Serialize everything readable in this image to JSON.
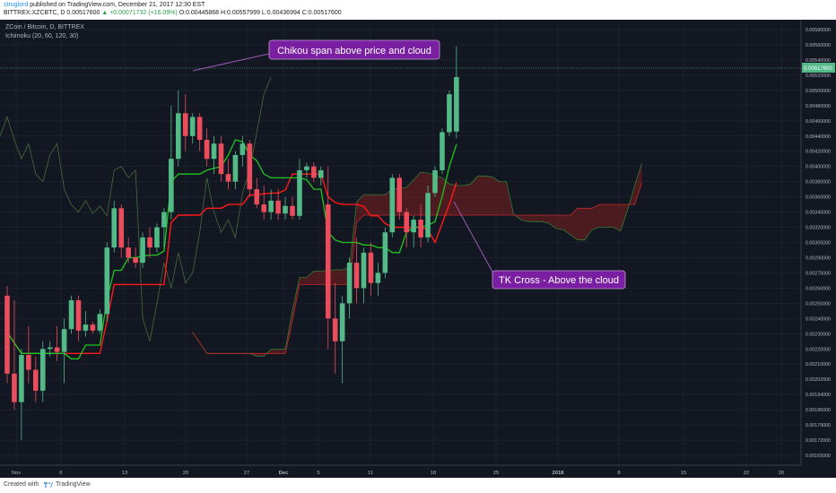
{
  "header": {
    "author": "struglord",
    "published": "published on TradingView.com, December 21, 2017 12:30 EST",
    "symbol": "BITTREX:XZCBTC, D",
    "last": "0.00517600",
    "change": "▲ +0.00071732 (+16.09%)",
    "ohlc": "O:0.00445868 H:0.00557999 L:0.00436994 C:0.00517600"
  },
  "chart_title": "ZCoin / Bitcoin, D, BITTREX",
  "indicator_label": "Ichimoku (20, 60, 120, 30)",
  "footer": {
    "created": "Created with",
    "brand": "TradingView"
  },
  "colors": {
    "background": "#131722",
    "bull": "#53b987",
    "bear": "#eb4d5c",
    "tenkan": "#1fc61f",
    "kijun": "#ff1a1a",
    "cloud_bear": "#7a1f1f",
    "cloud_bull": "#1f5f2a",
    "annotation": "#8e44ad"
  },
  "chart_data": {
    "type": "candlestick",
    "title": "ZCoin / Bitcoin, D, BITTREX",
    "y_ticks": [
      "0.00580000",
      "0.00560000",
      "0.00540000",
      "0.00520000",
      "0.00500000",
      "0.00480000",
      "0.00460000",
      "0.00440000",
      "0.00420000",
      "0.00400000",
      "0.00380000",
      "0.00360000",
      "0.00340000",
      "0.00320000",
      "0.00305000",
      "0.00290000",
      "0.00275000",
      "0.00260000",
      "0.00250000",
      "0.00240000",
      "0.00230000",
      "0.00220000",
      "0.00210000",
      "0.00202000",
      "0.00194000",
      "0.00186000",
      "0.00179000",
      "0.00172000",
      "0.00165000"
    ],
    "last_price_label": "0.00517600",
    "x_ticks": [
      "Nov",
      "6",
      "13",
      "20",
      "27",
      "Dec",
      "5",
      "11",
      "18",
      "25",
      "2018",
      "8",
      "15",
      "22",
      "26"
    ],
    "annotations": [
      {
        "text": "Chikou span above price and cloud"
      },
      {
        "text": "TK Cross - Above the cloud"
      }
    ],
    "candles": [
      {
        "o": 0.00255,
        "h": 0.00262,
        "l": 0.002,
        "c": 0.00205
      },
      {
        "o": 0.00205,
        "h": 0.00252,
        "l": 0.00186,
        "c": 0.0019
      },
      {
        "o": 0.0019,
        "h": 0.0022,
        "l": 0.00172,
        "c": 0.00216
      },
      {
        "o": 0.00216,
        "h": 0.00235,
        "l": 0.002,
        "c": 0.00207
      },
      {
        "o": 0.00207,
        "h": 0.00215,
        "l": 0.0019,
        "c": 0.00196
      },
      {
        "o": 0.00196,
        "h": 0.00225,
        "l": 0.0019,
        "c": 0.0022
      },
      {
        "o": 0.0022,
        "h": 0.00225,
        "l": 0.00215,
        "c": 0.00221
      },
      {
        "o": 0.00221,
        "h": 0.00235,
        "l": 0.00212,
        "c": 0.00218
      },
      {
        "o": 0.00218,
        "h": 0.0024,
        "l": 0.002,
        "c": 0.00233
      },
      {
        "o": 0.00233,
        "h": 0.00255,
        "l": 0.0023,
        "c": 0.00252
      },
      {
        "o": 0.00252,
        "h": 0.00255,
        "l": 0.00225,
        "c": 0.00232
      },
      {
        "o": 0.00232,
        "h": 0.00245,
        "l": 0.00228,
        "c": 0.00236
      },
      {
        "o": 0.00236,
        "h": 0.00238,
        "l": 0.0023,
        "c": 0.00232
      },
      {
        "o": 0.00232,
        "h": 0.00246,
        "l": 0.0023,
        "c": 0.00243
      },
      {
        "o": 0.00243,
        "h": 0.00305,
        "l": 0.00238,
        "c": 0.003
      },
      {
        "o": 0.003,
        "h": 0.00355,
        "l": 0.00295,
        "c": 0.00345
      },
      {
        "o": 0.00345,
        "h": 0.0035,
        "l": 0.0029,
        "c": 0.003
      },
      {
        "o": 0.003,
        "h": 0.0031,
        "l": 0.00285,
        "c": 0.0029
      },
      {
        "o": 0.0029,
        "h": 0.003,
        "l": 0.0028,
        "c": 0.00285
      },
      {
        "o": 0.00285,
        "h": 0.00315,
        "l": 0.0028,
        "c": 0.0031
      },
      {
        "o": 0.0031,
        "h": 0.0032,
        "l": 0.0029,
        "c": 0.003
      },
      {
        "o": 0.003,
        "h": 0.00325,
        "l": 0.00295,
        "c": 0.0032
      },
      {
        "o": 0.0032,
        "h": 0.00345,
        "l": 0.003,
        "c": 0.0034
      },
      {
        "o": 0.0034,
        "h": 0.0048,
        "l": 0.0033,
        "c": 0.0041
      },
      {
        "o": 0.0041,
        "h": 0.005,
        "l": 0.004,
        "c": 0.0047
      },
      {
        "o": 0.0047,
        "h": 0.00495,
        "l": 0.0042,
        "c": 0.0044
      },
      {
        "o": 0.0044,
        "h": 0.0047,
        "l": 0.0043,
        "c": 0.00465
      },
      {
        "o": 0.00465,
        "h": 0.0047,
        "l": 0.0042,
        "c": 0.00435
      },
      {
        "o": 0.00435,
        "h": 0.0045,
        "l": 0.004,
        "c": 0.0041
      },
      {
        "o": 0.0041,
        "h": 0.0044,
        "l": 0.0039,
        "c": 0.0043
      },
      {
        "o": 0.0043,
        "h": 0.0044,
        "l": 0.0038,
        "c": 0.0039
      },
      {
        "o": 0.0039,
        "h": 0.0041,
        "l": 0.0037,
        "c": 0.0038
      },
      {
        "o": 0.0038,
        "h": 0.0042,
        "l": 0.0037,
        "c": 0.00415
      },
      {
        "o": 0.00415,
        "h": 0.0044,
        "l": 0.004,
        "c": 0.0043
      },
      {
        "o": 0.0043,
        "h": 0.00435,
        "l": 0.0036,
        "c": 0.0037
      },
      {
        "o": 0.0037,
        "h": 0.00385,
        "l": 0.00345,
        "c": 0.0035
      },
      {
        "o": 0.0035,
        "h": 0.00375,
        "l": 0.0033,
        "c": 0.0034
      },
      {
        "o": 0.0034,
        "h": 0.0037,
        "l": 0.0033,
        "c": 0.00355
      },
      {
        "o": 0.00355,
        "h": 0.0037,
        "l": 0.0033,
        "c": 0.00338
      },
      {
        "o": 0.00338,
        "h": 0.0036,
        "l": 0.0033,
        "c": 0.00348
      },
      {
        "o": 0.00348,
        "h": 0.0036,
        "l": 0.0033,
        "c": 0.00335
      },
      {
        "o": 0.00335,
        "h": 0.0041,
        "l": 0.0033,
        "c": 0.00395
      },
      {
        "o": 0.00395,
        "h": 0.00405,
        "l": 0.00385,
        "c": 0.004
      },
      {
        "o": 0.004,
        "h": 0.00405,
        "l": 0.0038,
        "c": 0.00385
      },
      {
        "o": 0.00385,
        "h": 0.004,
        "l": 0.00375,
        "c": 0.00395
      },
      {
        "o": 0.0035,
        "h": 0.004,
        "l": 0.0022,
        "c": 0.0024
      },
      {
        "o": 0.0024,
        "h": 0.00265,
        "l": 0.00205,
        "c": 0.00225
      },
      {
        "o": 0.00225,
        "h": 0.00255,
        "l": 0.002,
        "c": 0.0025
      },
      {
        "o": 0.0025,
        "h": 0.0029,
        "l": 0.0024,
        "c": 0.00285
      },
      {
        "o": 0.00285,
        "h": 0.0031,
        "l": 0.0025,
        "c": 0.0026
      },
      {
        "o": 0.0026,
        "h": 0.003,
        "l": 0.0025,
        "c": 0.00295
      },
      {
        "o": 0.00295,
        "h": 0.00305,
        "l": 0.00255,
        "c": 0.00265
      },
      {
        "o": 0.00265,
        "h": 0.00285,
        "l": 0.00255,
        "c": 0.00275
      },
      {
        "o": 0.00275,
        "h": 0.0032,
        "l": 0.0027,
        "c": 0.00315
      },
      {
        "o": 0.00315,
        "h": 0.0039,
        "l": 0.0031,
        "c": 0.00385
      },
      {
        "o": 0.00385,
        "h": 0.0039,
        "l": 0.0033,
        "c": 0.0034
      },
      {
        "o": 0.0034,
        "h": 0.00345,
        "l": 0.003,
        "c": 0.00315
      },
      {
        "o": 0.00315,
        "h": 0.00335,
        "l": 0.003,
        "c": 0.0033
      },
      {
        "o": 0.0033,
        "h": 0.0035,
        "l": 0.003,
        "c": 0.0031
      },
      {
        "o": 0.0031,
        "h": 0.00375,
        "l": 0.00305,
        "c": 0.00365
      },
      {
        "o": 0.00365,
        "h": 0.004,
        "l": 0.0036,
        "c": 0.00395
      },
      {
        "o": 0.00395,
        "h": 0.0045,
        "l": 0.0039,
        "c": 0.00445
      },
      {
        "o": 0.00445,
        "h": 0.005,
        "l": 0.0044,
        "c": 0.00495
      },
      {
        "o": 0.00445868,
        "h": 0.00557999,
        "l": 0.00436994,
        "c": 0.005176
      }
    ]
  }
}
